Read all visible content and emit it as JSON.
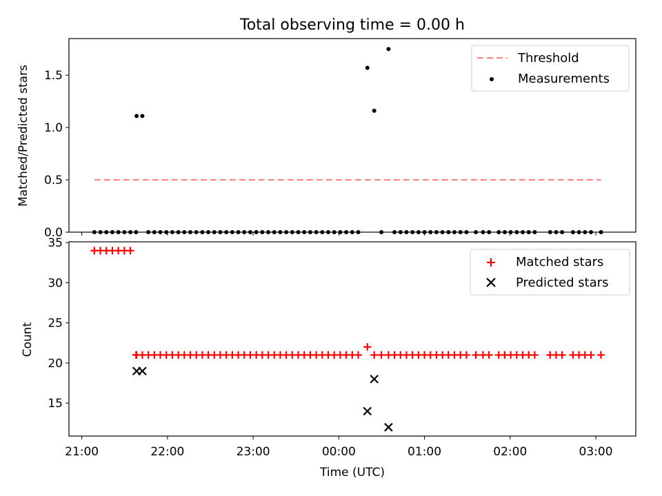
{
  "chart_data": [
    {
      "type": "scatter",
      "title": "Total observing time = 0.00 h",
      "xlabel": "",
      "ylabel": "Matched/Predicted stars",
      "xlim": [
        -184.5,
        14.0
      ],
      "ylim": [
        0,
        1.85
      ],
      "yticks": [
        0.0,
        0.5,
        1.0,
        1.5
      ],
      "ytick_labels": [
        "0.0",
        "0.5",
        "1.0",
        "1.5"
      ],
      "grid": false,
      "legend_position": "top-right",
      "series": [
        {
          "name": "Threshold",
          "kind": "dashed-line",
          "color": "#ff7f7f",
          "x": [
            -175.6,
            1.8
          ],
          "y": [
            0.5,
            0.5
          ]
        },
        {
          "name": "Measurements",
          "kind": "points",
          "color": "#000000",
          "x": [
            -175.6,
            -173.5,
            -171.4,
            -169.3,
            -167.2,
            -165.1,
            -163.0,
            -160.8,
            -161.0,
            -158.8,
            -156.7,
            -154.6,
            -152.5,
            -150.4,
            -148.3,
            -146.2,
            -144.1,
            -142.0,
            -139.9,
            -137.8,
            -135.7,
            -133.6,
            -131.5,
            -129.4,
            -127.3,
            -125.2,
            -123.1,
            -121.0,
            -118.9,
            -116.8,
            -114.7,
            -112.6,
            -110.5,
            -108.4,
            -106.3,
            -104.2,
            -102.1,
            -100.0,
            -97.9,
            -95.8,
            -93.7,
            -91.6,
            -89.5,
            -87.4,
            -85.3,
            -83.2,
            -80.0,
            -77.6,
            -75.1,
            -72.6,
            -70.5,
            -68.4,
            -66.3,
            -64.2,
            -62.1,
            -60.0,
            -57.9,
            -55.8,
            -53.7,
            -51.6,
            -49.5,
            -47.4,
            -45.3,
            -42.0,
            -39.5,
            -37.4,
            -34.0,
            -31.9,
            -29.8,
            -27.7,
            -25.6,
            -23.5,
            -21.4,
            -16.0,
            -13.9,
            -11.8,
            -8.0,
            -5.9,
            -3.8,
            -1.7,
            1.8
          ],
          "y": [
            0,
            0,
            0,
            0,
            0,
            0,
            0,
            1.11,
            0,
            1.11,
            0,
            0,
            0,
            0,
            0,
            0,
            0,
            0,
            0,
            0,
            0,
            0,
            0,
            0,
            0,
            0,
            0,
            0,
            0,
            0,
            0,
            0,
            0,
            0,
            0,
            0,
            0,
            0,
            0,
            0,
            0,
            0,
            0,
            0,
            0,
            0,
            1.57,
            1.16,
            0,
            1.75,
            0,
            0,
            0,
            0,
            0,
            0,
            0,
            0,
            0,
            0,
            0,
            0,
            0,
            0,
            0,
            0,
            0,
            0,
            0,
            0,
            0,
            0,
            0,
            0,
            0,
            0,
            0,
            0,
            0,
            0,
            0
          ]
        }
      ]
    },
    {
      "type": "scatter",
      "title": "",
      "xlabel": "Time (UTC)",
      "ylabel": "Count",
      "xlim": [
        -184.5,
        14.0
      ],
      "ylim": [
        10.9,
        35.1
      ],
      "xticks": [
        -180,
        -150,
        -120,
        -90,
        -60,
        -30,
        0
      ],
      "xtick_labels": [
        "21:00",
        "22:00",
        "23:00",
        "00:00",
        "01:00",
        "02:00",
        "03:00"
      ],
      "yticks": [
        15,
        20,
        25,
        30,
        35
      ],
      "ytick_labels": [
        "15",
        "20",
        "25",
        "30",
        "35"
      ],
      "grid": false,
      "legend_position": "top-right",
      "series": [
        {
          "name": "Matched stars",
          "kind": "plus",
          "color": "#ff0000",
          "x": [
            -175.6,
            -173.5,
            -171.4,
            -169.3,
            -167.2,
            -165.1,
            -163.0,
            -160.8,
            -161.0,
            -158.8,
            -156.7,
            -154.6,
            -152.5,
            -150.4,
            -148.3,
            -146.2,
            -144.1,
            -142.0,
            -139.9,
            -137.8,
            -135.7,
            -133.6,
            -131.5,
            -129.4,
            -127.3,
            -125.2,
            -123.1,
            -121.0,
            -118.9,
            -116.8,
            -114.7,
            -112.6,
            -110.5,
            -108.4,
            -106.3,
            -104.2,
            -102.1,
            -100.0,
            -97.9,
            -95.8,
            -93.7,
            -91.6,
            -89.5,
            -87.4,
            -85.3,
            -83.2,
            -80.0,
            -77.6,
            -75.1,
            -72.6,
            -70.5,
            -68.4,
            -66.3,
            -64.2,
            -62.1,
            -60.0,
            -57.9,
            -55.8,
            -53.7,
            -51.6,
            -49.5,
            -47.4,
            -45.3,
            -42.0,
            -39.5,
            -37.4,
            -34.0,
            -31.9,
            -29.8,
            -27.7,
            -25.6,
            -23.5,
            -21.4,
            -16.0,
            -13.9,
            -11.8,
            -8.0,
            -5.9,
            -3.8,
            -1.7,
            1.8
          ],
          "y": [
            34,
            34,
            34,
            34,
            34,
            34,
            34,
            21,
            21,
            21,
            21,
            21,
            21,
            21,
            21,
            21,
            21,
            21,
            21,
            21,
            21,
            21,
            21,
            21,
            21,
            21,
            21,
            21,
            21,
            21,
            21,
            21,
            21,
            21,
            21,
            21,
            21,
            21,
            21,
            21,
            21,
            21,
            21,
            21,
            21,
            21,
            22,
            21,
            21,
            21,
            21,
            21,
            21,
            21,
            21,
            21,
            21,
            21,
            21,
            21,
            21,
            21,
            21,
            21,
            21,
            21,
            21,
            21,
            21,
            21,
            21,
            21,
            21,
            21,
            21,
            21,
            21,
            21,
            21,
            21,
            21
          ]
        },
        {
          "name": "Predicted stars",
          "kind": "x",
          "color": "#000000",
          "x": [
            -160.8,
            -158.8,
            -80.0,
            -77.6,
            -72.6
          ],
          "y": [
            19,
            19,
            14,
            18,
            12
          ]
        }
      ]
    }
  ]
}
